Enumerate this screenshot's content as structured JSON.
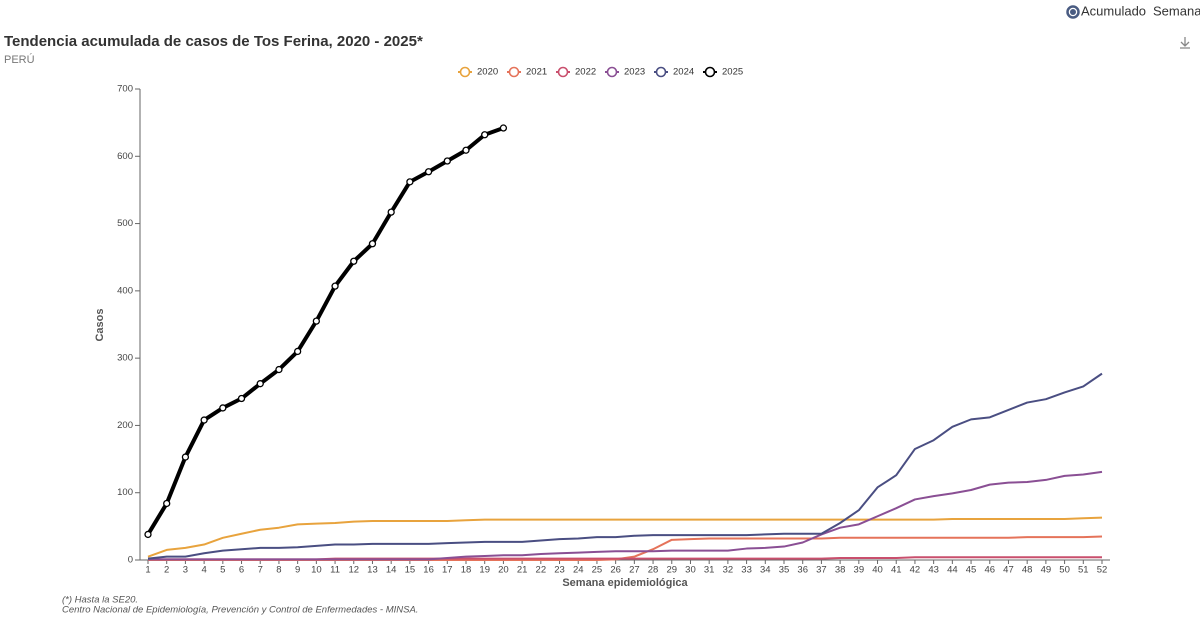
{
  "toggle": {
    "options": [
      "Acumulado",
      "Semanal"
    ],
    "selected": 0
  },
  "chart_data": {
    "type": "line",
    "title": "Tendencia acumulada de casos de Tos Ferina, 2020 - 2025*",
    "subtitle": "PERÚ",
    "x_label": "Semana epidemiológica",
    "y_label": "Casos",
    "x": [
      1,
      2,
      3,
      4,
      5,
      6,
      7,
      8,
      9,
      10,
      11,
      12,
      13,
      14,
      15,
      16,
      17,
      18,
      19,
      20,
      21,
      22,
      23,
      24,
      25,
      26,
      27,
      28,
      29,
      30,
      31,
      32,
      33,
      34,
      35,
      36,
      37,
      38,
      39,
      40,
      41,
      42,
      43,
      44,
      45,
      46,
      47,
      48,
      49,
      50,
      51,
      52
    ],
    "ylim": [
      0,
      700
    ],
    "yticks": [
      0,
      100,
      200,
      300,
      400,
      500,
      600,
      700
    ],
    "series": [
      {
        "name": "2020",
        "color": "#e8a33d",
        "values": [
          5,
          15,
          18,
          23,
          33,
          39,
          45,
          48,
          53,
          54,
          55,
          57,
          58,
          58,
          58,
          58,
          58,
          59,
          60,
          60,
          60,
          60,
          60,
          60,
          60,
          60,
          60,
          60,
          60,
          60,
          60,
          60,
          60,
          60,
          60,
          60,
          60,
          60,
          60,
          60,
          60,
          60,
          60,
          61,
          61,
          61,
          61,
          61,
          61,
          61,
          62,
          63
        ]
      },
      {
        "name": "2021",
        "color": "#e5735a",
        "values": [
          0,
          0,
          0,
          0,
          0,
          0,
          0,
          0,
          0,
          0,
          0,
          0,
          0,
          0,
          0,
          0,
          0,
          0,
          0,
          0,
          0,
          0,
          0,
          0,
          0,
          1,
          5,
          16,
          30,
          31,
          32,
          32,
          32,
          32,
          32,
          32,
          32,
          33,
          33,
          33,
          33,
          33,
          33,
          33,
          33,
          33,
          33,
          34,
          34,
          34,
          34,
          35
        ]
      },
      {
        "name": "2022",
        "color": "#c94f6d",
        "values": [
          1,
          1,
          1,
          1,
          1,
          1,
          1,
          1,
          1,
          1,
          2,
          2,
          2,
          2,
          2,
          2,
          2,
          2,
          2,
          2,
          2,
          2,
          2,
          2,
          2,
          2,
          2,
          2,
          2,
          2,
          2,
          2,
          2,
          2,
          2,
          2,
          2,
          3,
          3,
          3,
          3,
          4,
          4,
          4,
          4,
          4,
          4,
          4,
          4,
          4,
          4,
          4
        ]
      },
      {
        "name": "2023",
        "color": "#8a4f94",
        "values": [
          1,
          1,
          1,
          1,
          1,
          1,
          1,
          1,
          1,
          1,
          1,
          1,
          1,
          1,
          1,
          1,
          3,
          5,
          6,
          7,
          7,
          9,
          10,
          11,
          12,
          13,
          13,
          13,
          14,
          14,
          14,
          14,
          17,
          18,
          20,
          26,
          38,
          48,
          53,
          65,
          77,
          90,
          95,
          99,
          104,
          112,
          115,
          116,
          119,
          125,
          127,
          131
        ]
      },
      {
        "name": "2024",
        "color": "#4a4e82",
        "values": [
          2,
          5,
          5,
          10,
          14,
          16,
          18,
          18,
          19,
          21,
          23,
          23,
          24,
          24,
          24,
          24,
          25,
          26,
          27,
          27,
          27,
          29,
          31,
          32,
          34,
          34,
          36,
          37,
          37,
          37,
          37,
          37,
          37,
          38,
          39,
          39,
          39,
          55,
          74,
          108,
          126,
          165,
          178,
          198,
          209,
          212,
          223,
          234,
          239,
          249,
          258,
          277
        ]
      },
      {
        "name": "2025",
        "color": "#000000",
        "markers": true,
        "values": [
          38,
          84,
          153,
          208,
          226,
          240,
          262,
          283,
          310,
          355,
          407,
          444,
          470,
          517,
          562,
          577,
          593,
          609,
          632,
          642,
          null,
          null,
          null,
          null,
          null,
          null,
          null,
          null,
          null,
          null,
          null,
          null,
          null,
          null,
          null,
          null,
          null,
          null,
          null,
          null,
          null,
          null,
          null,
          null,
          null,
          null,
          null,
          null,
          null,
          null,
          null,
          null
        ]
      }
    ]
  },
  "footnotes": [
    "(*) Hasta la SE20.",
    "Centro Nacional de Epidemiología, Prevención y Control de Enfermedades - MINSA."
  ]
}
